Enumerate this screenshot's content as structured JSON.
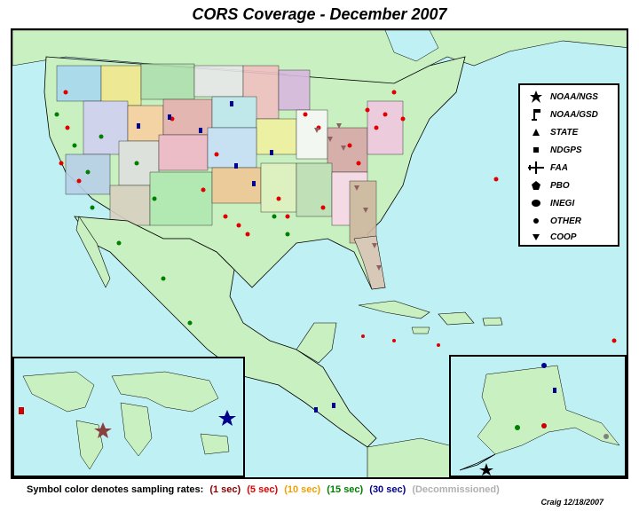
{
  "title": "CORS Coverage - December 2007",
  "legend": {
    "items": [
      {
        "label": "NOAA/NGS",
        "icon": "star-icon"
      },
      {
        "label": "NOAA/GSD",
        "icon": "flag-icon"
      },
      {
        "label": "STATE",
        "icon": "triangle-icon"
      },
      {
        "label": "NDGPS",
        "icon": "square-icon"
      },
      {
        "label": "FAA",
        "icon": "airplane-icon"
      },
      {
        "label": "PBO",
        "icon": "pentagon-icon"
      },
      {
        "label": "INEGI",
        "icon": "ellipse-icon"
      },
      {
        "label": "OTHER",
        "icon": "circle-icon"
      },
      {
        "label": "COOP",
        "icon": "down-triangle-icon"
      }
    ]
  },
  "footer": {
    "prefix": "Symbol color denotes sampling rates:",
    "rates": [
      {
        "label": "(1 sec)",
        "color": "#8b0000"
      },
      {
        "label": "(5 sec)",
        "color": "#e00000"
      },
      {
        "label": "(10 sec)",
        "color": "#f0a000"
      },
      {
        "label": "(15 sec)",
        "color": "#008000"
      },
      {
        "label": "(30 sec)",
        "color": "#000090"
      },
      {
        "label": "(Decommissioned)",
        "color": "#b0b0b0"
      }
    ]
  },
  "credit": "Craig 12/18/2007",
  "colors": {
    "ocean": "#bff0f3",
    "land": "#c8f0c0",
    "border": "#000000"
  }
}
